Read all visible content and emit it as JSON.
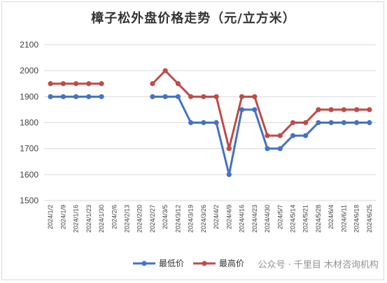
{
  "chart_data": {
    "type": "line",
    "title": "樟子松外盘价格走势（元/立方米）",
    "xlabel": "",
    "ylabel": "",
    "ylim": [
      1500,
      2100
    ],
    "yticks": [
      1500,
      1600,
      1700,
      1800,
      1900,
      2000,
      2100
    ],
    "grid": true,
    "legend_position": "bottom",
    "categories": [
      "2024/1/2",
      "2024/1/9",
      "2024/1/16",
      "2024/1/23",
      "2024/1/30",
      "2024/2/6",
      "2024/2/13",
      "2024/2/20",
      "2024/2/27",
      "2024/3/5",
      "2024/3/12",
      "2024/3/19",
      "2024/3/26",
      "2024/4/2",
      "2024/4/9",
      "2024/4/16",
      "2024/4/23",
      "2024/4/30",
      "2024/5/7",
      "2024/5/14",
      "2024/5/21",
      "2024/5/28",
      "2024/6/4",
      "2024/6/11",
      "2024/6/18",
      "2024/6/25"
    ],
    "series": [
      {
        "name": "最低价",
        "color": "#4472C4",
        "values": [
          1900,
          1900,
          1900,
          1900,
          1900,
          null,
          null,
          null,
          1900,
          1900,
          1900,
          1800,
          1800,
          1800,
          1600,
          1850,
          1850,
          1700,
          1700,
          1750,
          1750,
          1800,
          1800,
          1800,
          1800,
          1800
        ]
      },
      {
        "name": "最高价",
        "color": "#BE4B48",
        "values": [
          1950,
          1950,
          1950,
          1950,
          1950,
          null,
          null,
          null,
          1950,
          2000,
          1950,
          1900,
          1900,
          1900,
          1700,
          1900,
          1900,
          1750,
          1750,
          1800,
          1800,
          1850,
          1850,
          1850,
          1850,
          1850
        ]
      }
    ]
  },
  "watermark": "公众号 · 千里目 木材咨询机构"
}
